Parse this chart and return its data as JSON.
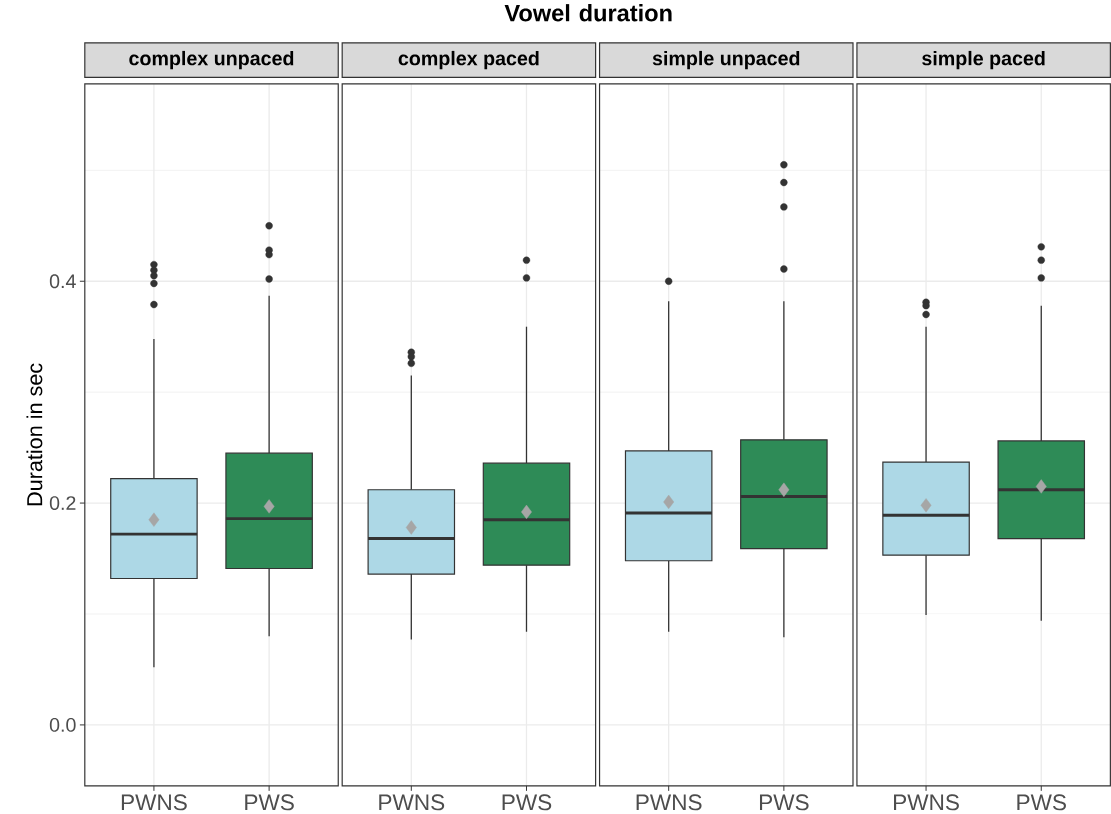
{
  "chart_data": [
    {
      "type": "box",
      "title": "complex unpaced",
      "ylabel": "Duration in sec",
      "annotations": [
        "Vowel duration"
      ],
      "categories": [
        "PWNS",
        "PWS"
      ],
      "colors": [
        "#add8e6",
        "#2e8b57"
      ],
      "ylim": [
        -0.055,
        0.578
      ],
      "yticks": [
        {
          "value": 0,
          "label": "0.0"
        },
        {
          "value": 0.1,
          "label": null
        },
        {
          "value": 0.2,
          "label": "0.2"
        },
        {
          "value": 0.3,
          "label": null
        },
        {
          "value": 0.4,
          "label": "0.4"
        },
        {
          "value": 0.5,
          "label": null
        }
      ],
      "grid": true,
      "boxes": [
        {
          "low": 0.052,
          "q1": 0.132,
          "median": 0.172,
          "q3": 0.222,
          "high": 0.348,
          "mean": 0.185,
          "outliers": [
            0.415,
            0.41,
            0.405,
            0.398,
            0.379
          ]
        },
        {
          "low": 0.08,
          "q1": 0.141,
          "median": 0.186,
          "q3": 0.245,
          "high": 0.387,
          "mean": 0.197,
          "outliers": [
            0.45,
            0.428,
            0.424,
            0.402
          ]
        }
      ]
    },
    {
      "type": "box",
      "title": "complex paced",
      "categories": [
        "PWNS",
        "PWS"
      ],
      "colors": [
        "#add8e6",
        "#2e8b57"
      ],
      "ylim": [
        -0.055,
        0.578
      ],
      "yticks": [
        0,
        {
          "value": 0.1,
          "label": null
        },
        0.2,
        {
          "value": 0.3,
          "label": null
        },
        0.4,
        {
          "value": 0.5,
          "label": null
        }
      ],
      "grid": true,
      "tick_labels": "x",
      "boxes": [
        {
          "low": 0.077,
          "q1": 0.136,
          "median": 0.168,
          "q3": 0.212,
          "high": 0.315,
          "mean": 0.178,
          "outliers": [
            0.336,
            0.332,
            0.326
          ]
        },
        {
          "low": 0.084,
          "q1": 0.144,
          "median": 0.185,
          "q3": 0.236,
          "high": 0.359,
          "mean": 0.192,
          "outliers": [
            0.419,
            0.403
          ]
        }
      ]
    },
    {
      "type": "box",
      "title": "simple unpaced",
      "categories": [
        "PWNS",
        "PWS"
      ],
      "colors": [
        "#add8e6",
        "#2e8b57"
      ],
      "ylim": [
        -0.055,
        0.578
      ],
      "yticks": [
        0,
        {
          "value": 0.1,
          "label": null
        },
        0.2,
        {
          "value": 0.3,
          "label": null
        },
        0.4,
        {
          "value": 0.5,
          "label": null
        }
      ],
      "grid": true,
      "tick_labels": "x",
      "boxes": [
        {
          "low": 0.084,
          "q1": 0.148,
          "median": 0.191,
          "q3": 0.247,
          "high": 0.382,
          "mean": 0.201,
          "outliers": [
            0.4
          ]
        },
        {
          "low": 0.079,
          "q1": 0.159,
          "median": 0.206,
          "q3": 0.257,
          "high": 0.382,
          "mean": 0.212,
          "outliers": [
            0.505,
            0.489,
            0.467,
            0.411
          ]
        }
      ]
    },
    {
      "type": "box",
      "title": "simple paced",
      "categories": [
        "PWNS",
        "PWS"
      ],
      "colors": [
        "#add8e6",
        "#2e8b57"
      ],
      "ylim": [
        -0.055,
        0.578
      ],
      "yticks": [
        0,
        {
          "value": 0.1,
          "label": null
        },
        0.2,
        {
          "value": 0.3,
          "label": null
        },
        0.4,
        {
          "value": 0.5,
          "label": null
        }
      ],
      "grid": true,
      "tick_labels": "x",
      "boxes": [
        {
          "low": 0.099,
          "q1": 0.153,
          "median": 0.189,
          "q3": 0.237,
          "high": 0.359,
          "mean": 0.198,
          "outliers": [
            0.381,
            0.378,
            0.37
          ]
        },
        {
          "low": 0.094,
          "q1": 0.168,
          "median": 0.212,
          "q3": 0.256,
          "high": 0.378,
          "mean": 0.215,
          "outliers": [
            0.431,
            0.419,
            0.403
          ]
        }
      ]
    }
  ]
}
